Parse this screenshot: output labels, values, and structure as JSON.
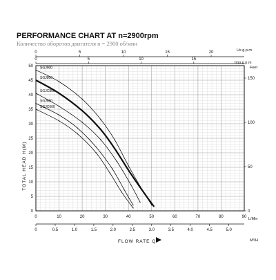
{
  "chart_data": {
    "type": "line",
    "title": "PERFORMANCE CHART AT n=2900rpm",
    "subtitle": "Количество оборотов двигателя n = 2900 об/мин",
    "xlabel": "FLOW RATE Q",
    "ylabel": "TOTAL HEAD H(M)",
    "x_unit": "L/Min",
    "xlim": [
      0,
      90
    ],
    "ylim": [
      0,
      50
    ],
    "grid": true,
    "x_ticks": [
      "0",
      "10",
      "20",
      "30",
      "40",
      "50",
      "60",
      "70",
      "80",
      "90"
    ],
    "y_ticks": [
      "0",
      "5",
      "10",
      "15",
      "20",
      "25",
      "30",
      "35",
      "40",
      "45",
      "50"
    ],
    "right_axis": {
      "label": "Feet",
      "ticks": [
        "0",
        "50",
        "100",
        "150"
      ]
    },
    "top_axis_us": {
      "label": "Us g.p.m",
      "ticks": [
        "0",
        "5",
        "10",
        "15",
        "20"
      ]
    },
    "top_axis_imp": {
      "label": "Imp g.p.m",
      "ticks": [
        "0",
        "5",
        "10",
        "15"
      ]
    },
    "bottom_axis_m3h": {
      "label": "M³/H",
      "ticks": [
        "0",
        "0.5",
        "1.0",
        "1.5",
        "2.0",
        "2.5",
        "3.0",
        "3.5",
        "4.0",
        "4.5",
        "5.0"
      ]
    },
    "series": [
      {
        "name": "SGJ900",
        "bold": false,
        "x": [
          0,
          10,
          20,
          28,
          34,
          40,
          45,
          50
        ],
        "y": [
          48.5,
          44.5,
          38.5,
          31.5,
          24.5,
          15.5,
          8.5,
          2
        ]
      },
      {
        "name": "SGJ800",
        "bold": true,
        "x": [
          0,
          10,
          20,
          28,
          34,
          40,
          46,
          51
        ],
        "y": [
          45,
          40.5,
          34.5,
          28,
          21.5,
          14,
          7,
          1.5
        ]
      },
      {
        "name": "SGJC800",
        "bold": false,
        "x": [
          0,
          10,
          20,
          28,
          35,
          41,
          45
        ],
        "y": [
          40.5,
          36,
          30.5,
          24.5,
          17,
          9,
          3
        ]
      },
      {
        "name": "SGJ600",
        "bold": false,
        "x": [
          0,
          10,
          18,
          26,
          33,
          38,
          42
        ],
        "y": [
          37,
          33,
          28.5,
          22,
          14.5,
          7.5,
          2
        ]
      },
      {
        "name": "SGJC600",
        "bold": false,
        "x": [
          0,
          10,
          18,
          26,
          32,
          37,
          42
        ],
        "y": [
          35,
          31,
          26.5,
          20,
          13,
          6.5,
          1
        ]
      }
    ]
  }
}
